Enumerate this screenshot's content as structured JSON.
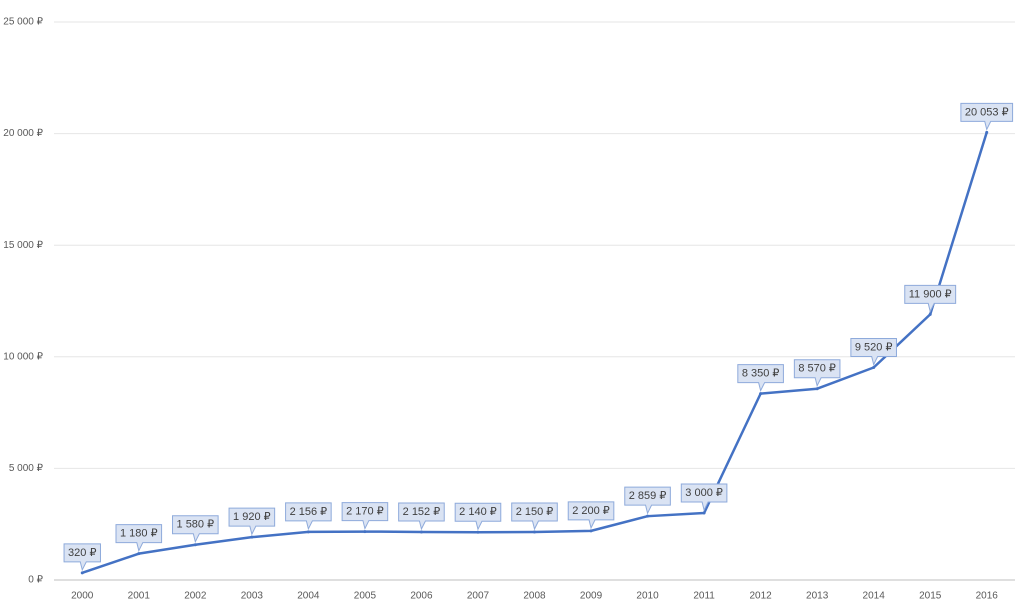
{
  "chart_data": {
    "type": "line",
    "categories": [
      "2000",
      "2001",
      "2002",
      "2003",
      "2004",
      "2005",
      "2006",
      "2007",
      "2008",
      "2009",
      "2010",
      "2011",
      "2012",
      "2013",
      "2014",
      "2015",
      "2016"
    ],
    "values": [
      320,
      1180,
      1580,
      1920,
      2156,
      2170,
      2152,
      2140,
      2150,
      2200,
      2859,
      3000,
      8350,
      8570,
      9520,
      11900,
      20053
    ],
    "value_labels": [
      "320 ₽",
      "1 180 ₽",
      "1 580 ₽",
      "1 920 ₽",
      "2 156 ₽",
      "2 170 ₽",
      "2 152 ₽",
      "2 140 ₽",
      "2 150 ₽",
      "2 200 ₽",
      "2 859 ₽",
      "3 000 ₽",
      "8 350 ₽",
      "8 570 ₽",
      "9 520 ₽",
      "11 900 ₽",
      "20 053 ₽"
    ],
    "color": "#4472c4",
    "ylim": [
      0,
      25000
    ],
    "yticks": [
      {
        "value": 0,
        "label": "0 ₽"
      },
      {
        "value": 5000,
        "label": "5 000 ₽"
      },
      {
        "value": 10000,
        "label": "10 000 ₽"
      },
      {
        "value": 15000,
        "label": "15 000 ₽"
      },
      {
        "value": 20000,
        "label": "20 000 ₽"
      },
      {
        "value": 25000,
        "label": "25 000 ₽"
      }
    ],
    "grid": true
  }
}
